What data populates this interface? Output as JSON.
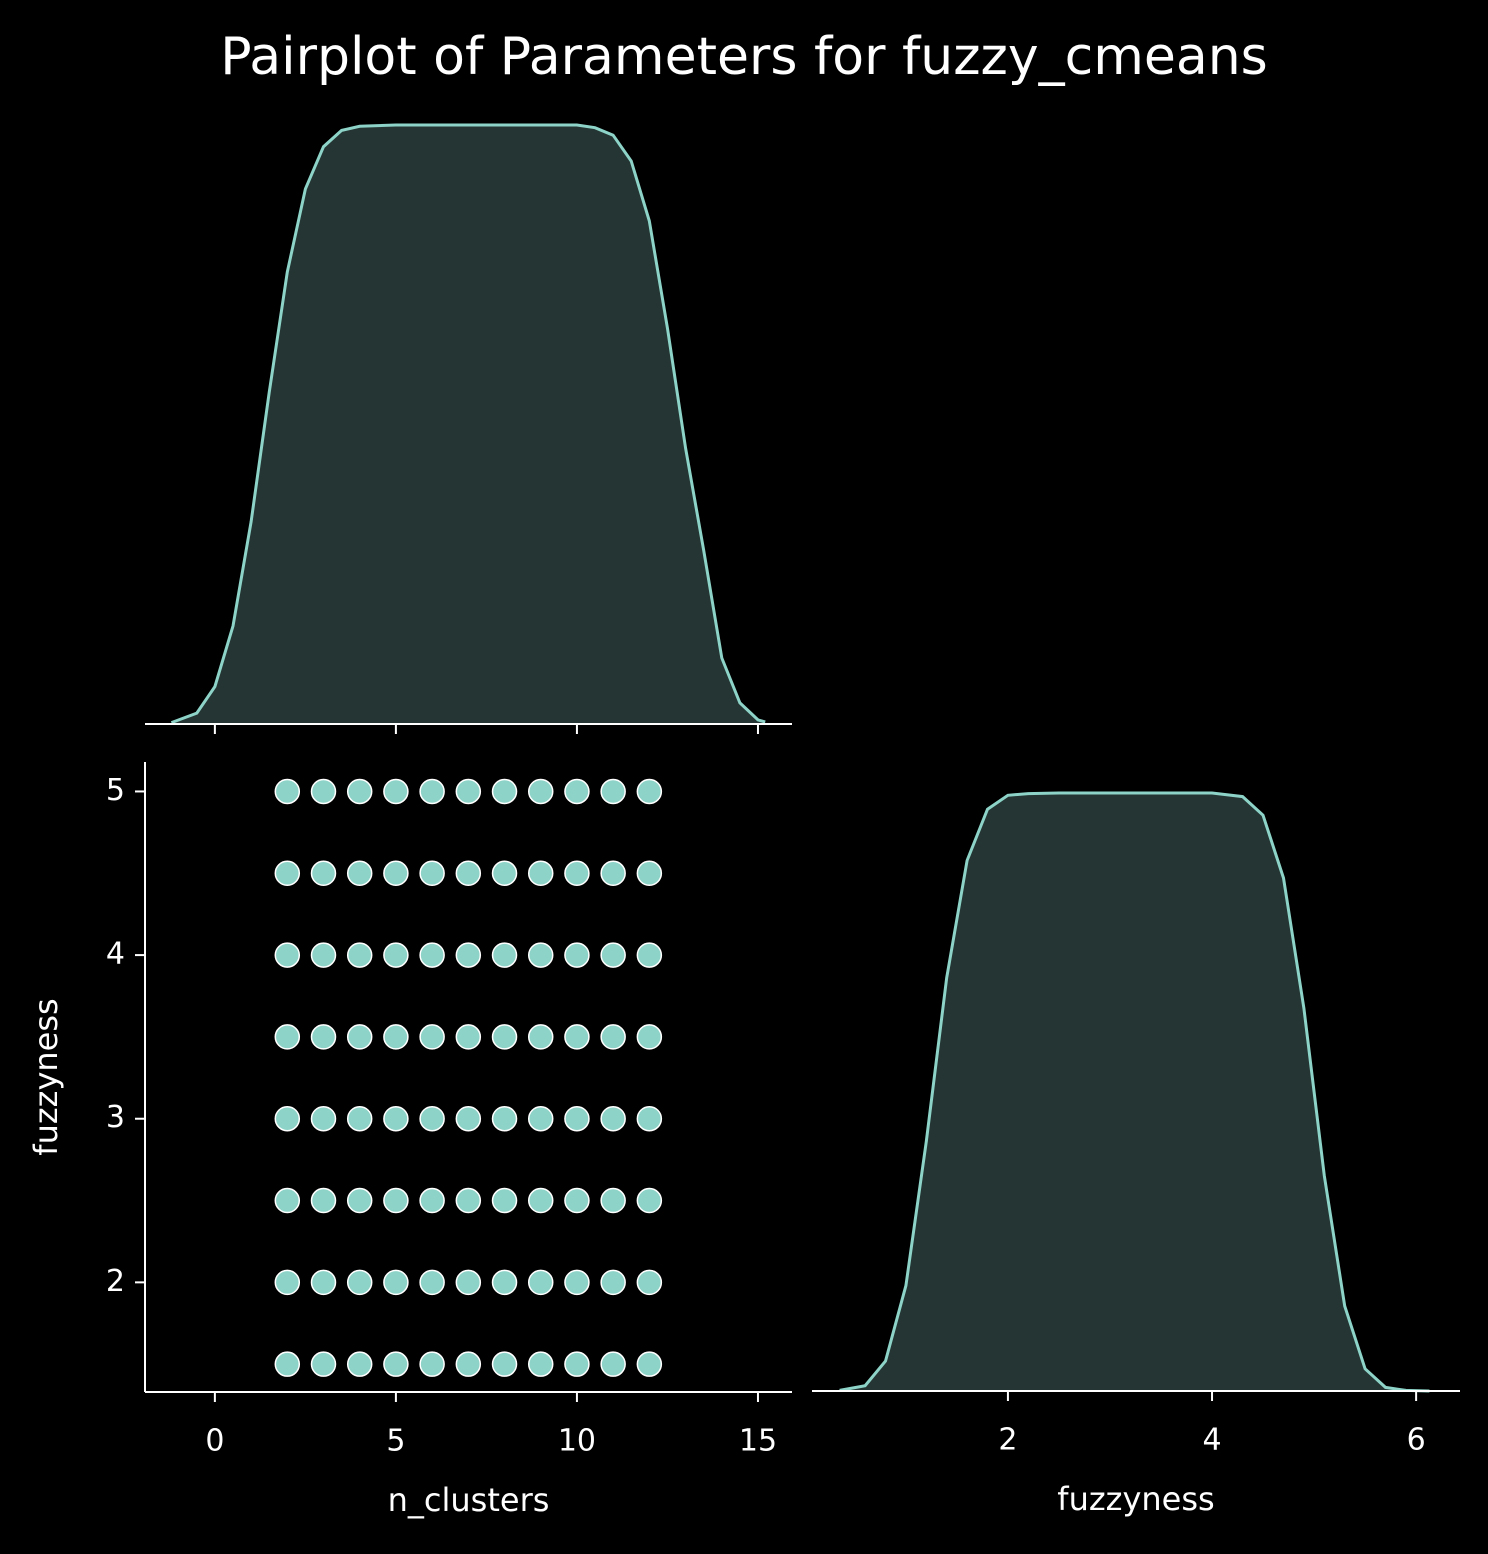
{
  "title": "Pairplot of Parameters for fuzzy_cmeans",
  "chart_data": [
    {
      "type": "kde",
      "color": "#8dd3c7",
      "fill": "#243533",
      "x": [
        -1.2,
        -0.5,
        0,
        0.5,
        1,
        1.5,
        2,
        2.5,
        3,
        3.5,
        4,
        5,
        6,
        7,
        8,
        9,
        10,
        10.5,
        11,
        11.5,
        12,
        12.5,
        13,
        13.5,
        14,
        14.5,
        15,
        15.2
      ],
      "values": [
        0.0002,
        0.0016,
        0.0055,
        0.0144,
        0.0297,
        0.0487,
        0.0664,
        0.0786,
        0.0848,
        0.0872,
        0.0878,
        0.088,
        0.088,
        0.088,
        0.088,
        0.088,
        0.088,
        0.0876,
        0.0865,
        0.0827,
        0.0739,
        0.0581,
        0.0405,
        0.0255,
        0.0097,
        0.0031,
        0.0006,
        0.0003
      ],
      "xlim": [
        -1.93,
        15.94
      ],
      "ylim": [
        0,
        0.0924
      ]
    },
    {
      "type": "scatter",
      "color": "#8dd3c7",
      "xlabel": "n_clusters",
      "ylabel": "fuzzyness",
      "x": [
        2,
        2,
        2,
        2,
        2,
        2,
        2,
        2,
        3,
        3,
        3,
        3,
        3,
        3,
        3,
        3,
        4,
        4,
        4,
        4,
        4,
        4,
        4,
        4,
        5,
        5,
        5,
        5,
        5,
        5,
        5,
        5,
        6,
        6,
        6,
        6,
        6,
        6,
        6,
        6,
        7,
        7,
        7,
        7,
        7,
        7,
        7,
        7,
        8,
        8,
        8,
        8,
        8,
        8,
        8,
        8,
        9,
        9,
        9,
        9,
        9,
        9,
        9,
        9,
        10,
        10,
        10,
        10,
        10,
        10,
        10,
        10,
        11,
        11,
        11,
        11,
        11,
        11,
        11,
        11,
        12,
        12,
        12,
        12,
        12,
        12,
        12,
        12
      ],
      "y": [
        1.5,
        2,
        2.5,
        3,
        3.5,
        4,
        4.5,
        5,
        1.5,
        2,
        2.5,
        3,
        3.5,
        4,
        4.5,
        5,
        1.5,
        2,
        2.5,
        3,
        3.5,
        4,
        4.5,
        5,
        1.5,
        2,
        2.5,
        3,
        3.5,
        4,
        4.5,
        5,
        1.5,
        2,
        2.5,
        3,
        3.5,
        4,
        4.5,
        5,
        1.5,
        2,
        2.5,
        3,
        3.5,
        4,
        4.5,
        5,
        1.5,
        2,
        2.5,
        3,
        3.5,
        4,
        4.5,
        5,
        1.5,
        2,
        2.5,
        3,
        3.5,
        4,
        4.5,
        5,
        1.5,
        2,
        2.5,
        3,
        3.5,
        4,
        4.5,
        5,
        1.5,
        2,
        2.5,
        3,
        3.5,
        4,
        4.5,
        5,
        1.5,
        2,
        2.5,
        3,
        3.5,
        4,
        4.5,
        5
      ],
      "xlim": [
        -1.93,
        15.94
      ],
      "ylim": [
        1.33,
        5.18
      ],
      "xticks": [
        0,
        5,
        10,
        15
      ],
      "yticks": [
        2,
        3,
        4,
        5
      ]
    },
    {
      "type": "kde",
      "color": "#8dd3c7",
      "fill": "#243533",
      "xlabel": "fuzzyness",
      "x": [
        0.35,
        0.6,
        0.8,
        1.0,
        1.2,
        1.4,
        1.6,
        1.8,
        2.0,
        2.2,
        2.5,
        3,
        3.5,
        4,
        4.3,
        4.5,
        4.7,
        4.9,
        5.1,
        5.3,
        5.5,
        5.7,
        5.9,
        6.13
      ],
      "values": [
        0.0003,
        0.0025,
        0.014,
        0.0493,
        0.1168,
        0.1935,
        0.2484,
        0.2724,
        0.2789,
        0.2797,
        0.28,
        0.28,
        0.28,
        0.28,
        0.2783,
        0.2696,
        0.2402,
        0.1792,
        0.1008,
        0.0398,
        0.0104,
        0.0017,
        0.0003,
        0
      ],
      "xlim": [
        0.08,
        6.43
      ],
      "ylim": [
        0,
        0.2945
      ],
      "xticks": [
        2,
        4,
        6
      ]
    }
  ]
}
